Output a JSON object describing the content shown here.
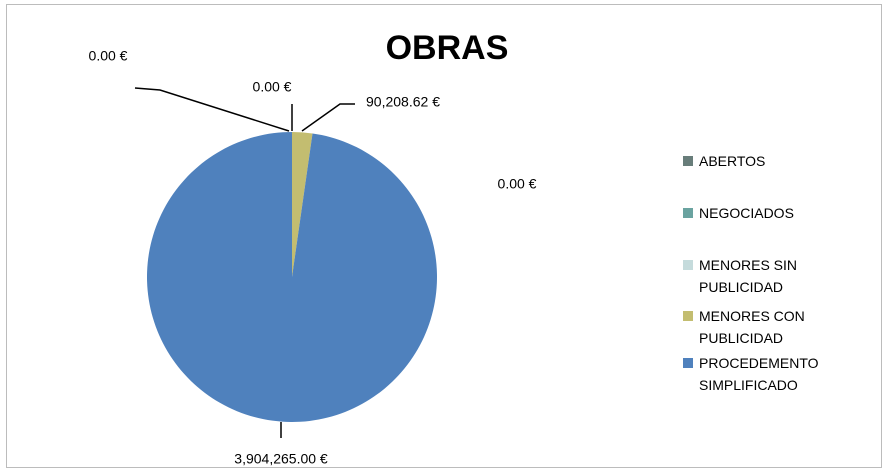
{
  "chart_data": {
    "type": "pie",
    "title": "OBRAS",
    "categories": [
      "ABERTOS",
      "NEGOCIADOS",
      "MENORES SIN PUBLICIDAD",
      "MENORES CON PUBLICIDAD",
      "PROCEDEMENTO SIMPLIFICADO"
    ],
    "values": [
      0,
      0,
      0,
      90208.62,
      3904265
    ],
    "value_labels": [
      "0.00 €",
      "0.00 €",
      "0.00 €",
      "90,208.62 €",
      "3,904,265.00 €"
    ],
    "colors": [
      "#687d7a",
      "#6aa3a0",
      "#c5dbdc",
      "#c3bd70",
      "#4f81bd"
    ],
    "legend": "right"
  }
}
